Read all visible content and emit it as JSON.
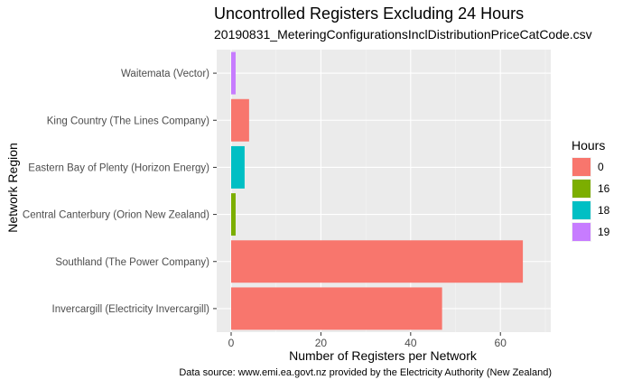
{
  "chart_data": {
    "type": "bar",
    "orientation": "horizontal",
    "title": "Uncontrolled Registers Excluding 24 Hours",
    "subtitle": "20190831_MeteringConfigurationsInclDistributionPriceCatCode.csv",
    "xlabel": "Number of Registers per Network",
    "ylabel": "Network Region",
    "caption": "Data source: www.emi.ea.govt.nz provided by the Electricity Authority (New Zealand)",
    "xlim": [
      0,
      68
    ],
    "xticks": [
      0,
      20,
      40,
      60
    ],
    "grid": true,
    "legend": {
      "title": "Hours",
      "position": "right",
      "entries": [
        {
          "label": "0",
          "color": "#F8766D"
        },
        {
          "label": "16",
          "color": "#7CAE00"
        },
        {
          "label": "18",
          "color": "#00BFC4"
        },
        {
          "label": "19",
          "color": "#C77CFF"
        }
      ]
    },
    "bars": [
      {
        "category": "Waitemata (Vector)",
        "value": 1,
        "hours": "19"
      },
      {
        "category": "King Country (The Lines Company)",
        "value": 4,
        "hours": "0"
      },
      {
        "category": "Eastern Bay of Plenty (Horizon Energy)",
        "value": 3,
        "hours": "18"
      },
      {
        "category": "Central Canterbury (Orion New Zealand)",
        "value": 1,
        "hours": "16"
      },
      {
        "category": "Southland (The Power Company)",
        "value": 65,
        "hours": "0"
      },
      {
        "category": "Invercargill (Electricity Invercargill)",
        "value": 47,
        "hours": "0"
      }
    ]
  }
}
